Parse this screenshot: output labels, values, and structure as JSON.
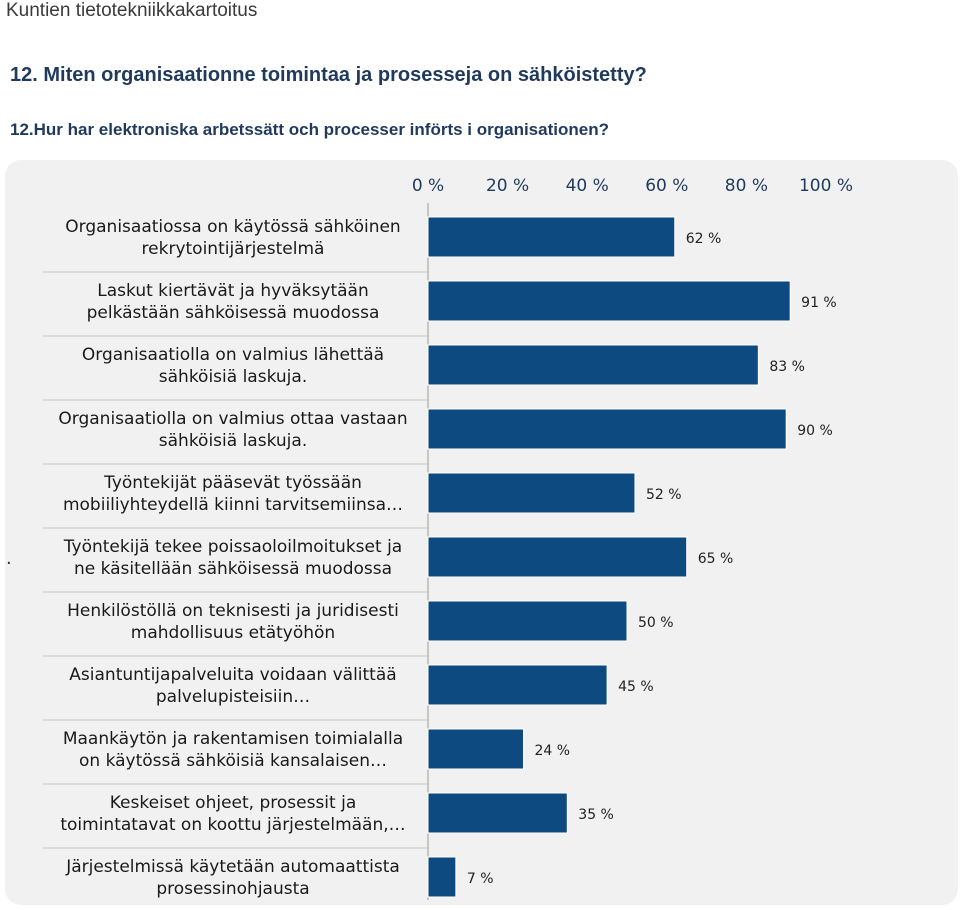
{
  "page": {
    "header": "Kuntien tietotekniikkakartoitus",
    "question_fi": "12. Miten organisaationne toimintaa ja prosesseja on sähköistetty?",
    "question_sv": "12.Hur har elektroniska arbetssätt och processer införts i organisationen?",
    "stray_mark": "."
  },
  "colors": {
    "bar": "#0d4a80",
    "panel": "#f1f1f1",
    "tick_text": "#1f3a5c",
    "grid": "#c6c6c6"
  },
  "chart_data": {
    "type": "bar",
    "orientation": "horizontal",
    "x_ticks": [
      "0 %",
      "20 %",
      "40 %",
      "60 %",
      "80 %",
      "100 %"
    ],
    "xlim": [
      0,
      100
    ],
    "tick_position": "top",
    "categories": [
      [
        "Organisaatiossa on käytössä sähköinen",
        "rekrytointijärjestelmä"
      ],
      [
        "Laskut kiertävät ja hyväksytään",
        "pelkästään sähköisessä muodossa"
      ],
      [
        "Organisaatiolla on valmius lähettää",
        "sähköisiä laskuja."
      ],
      [
        "Organisaatiolla on valmius ottaa vastaan",
        "sähköisiä laskuja."
      ],
      [
        "Työntekijät pääsevät työssään",
        "mobiiliyhteydellä kiinni tarvitsemiinsa…"
      ],
      [
        "Työntekijä tekee poissaoloilmoitukset ja",
        "ne käsitellään sähköisessä muodossa"
      ],
      [
        "Henkilöstöllä on teknisesti ja juridisesti",
        "mahdollisuus etätyöhön"
      ],
      [
        "Asiantuntijapalveluita voidaan välittää",
        "palvelupisteisiin…"
      ],
      [
        "Maankäytön ja rakentamisen toimialalla",
        "on käytössä sähköisiä kansalaisen…"
      ],
      [
        "Keskeiset ohjeet, prosessit ja",
        "toimintatavat on koottu järjestelmään,…"
      ],
      [
        "Järjestelmissä käytetään automaattista",
        "prosessinohjausta"
      ]
    ],
    "values": [
      62,
      91,
      83,
      90,
      52,
      65,
      50,
      45,
      24,
      35,
      7
    ],
    "value_labels": [
      "62 %",
      "91 %",
      "83 %",
      "90 %",
      "52 %",
      "65 %",
      "50 %",
      "45 %",
      "24 %",
      "35 %",
      "7 %"
    ],
    "legend": "none",
    "grid": false
  }
}
